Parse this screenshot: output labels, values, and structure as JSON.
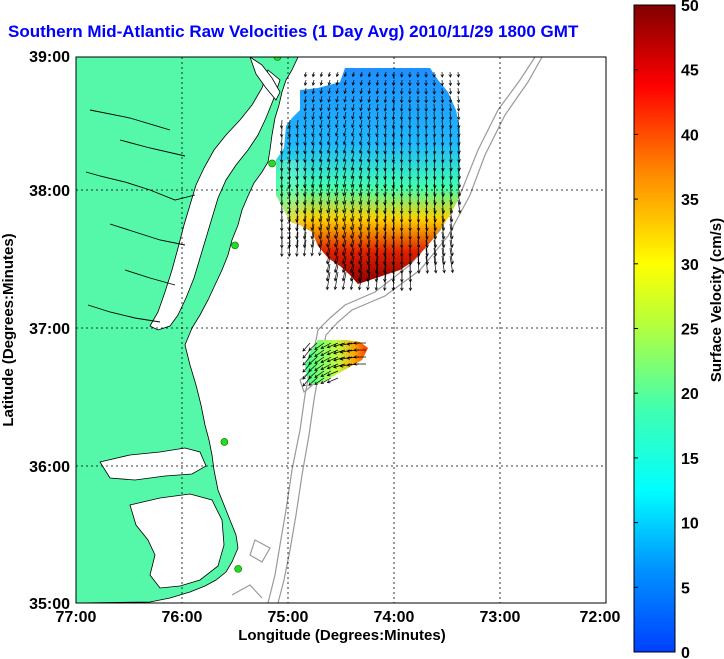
{
  "title": "Southern Mid-Atlantic Raw Velocities (1 Day Avg) 2010/11/29 1800 GMT",
  "x_axis": {
    "label": "Longitude (Degrees:Minutes)",
    "ticks": [
      "77:00",
      "76:00",
      "75:00",
      "74:00",
      "73:00",
      "72:00"
    ]
  },
  "y_axis": {
    "label": "Latitude (Degrees:Minutes)",
    "ticks": [
      "39:00",
      "38:00",
      "37:00",
      "36:00",
      "35:00"
    ]
  },
  "colorbar": {
    "label": "Surface Velocity (cm/s)",
    "ticks": [
      "50",
      "45",
      "40",
      "35",
      "30",
      "25",
      "20",
      "15",
      "10",
      "5",
      "0"
    ],
    "min": 0,
    "max": 50
  },
  "colors": {
    "land": "#55f7a8",
    "title": "#0000ff",
    "station": "#22dd22",
    "bathymetry": "#9a9a9a"
  },
  "map": {
    "lon_range": [
      -77,
      -72
    ],
    "lat_range": [
      35,
      39
    ],
    "grid": true,
    "stations": [
      {
        "lon": -75.1,
        "lat": 39.0
      },
      {
        "lon": -75.15,
        "lat": 38.22
      },
      {
        "lon": -75.5,
        "lat": 37.62
      },
      {
        "lon": -75.6,
        "lat": 36.18
      },
      {
        "lon": -75.47,
        "lat": 35.25
      }
    ]
  }
}
